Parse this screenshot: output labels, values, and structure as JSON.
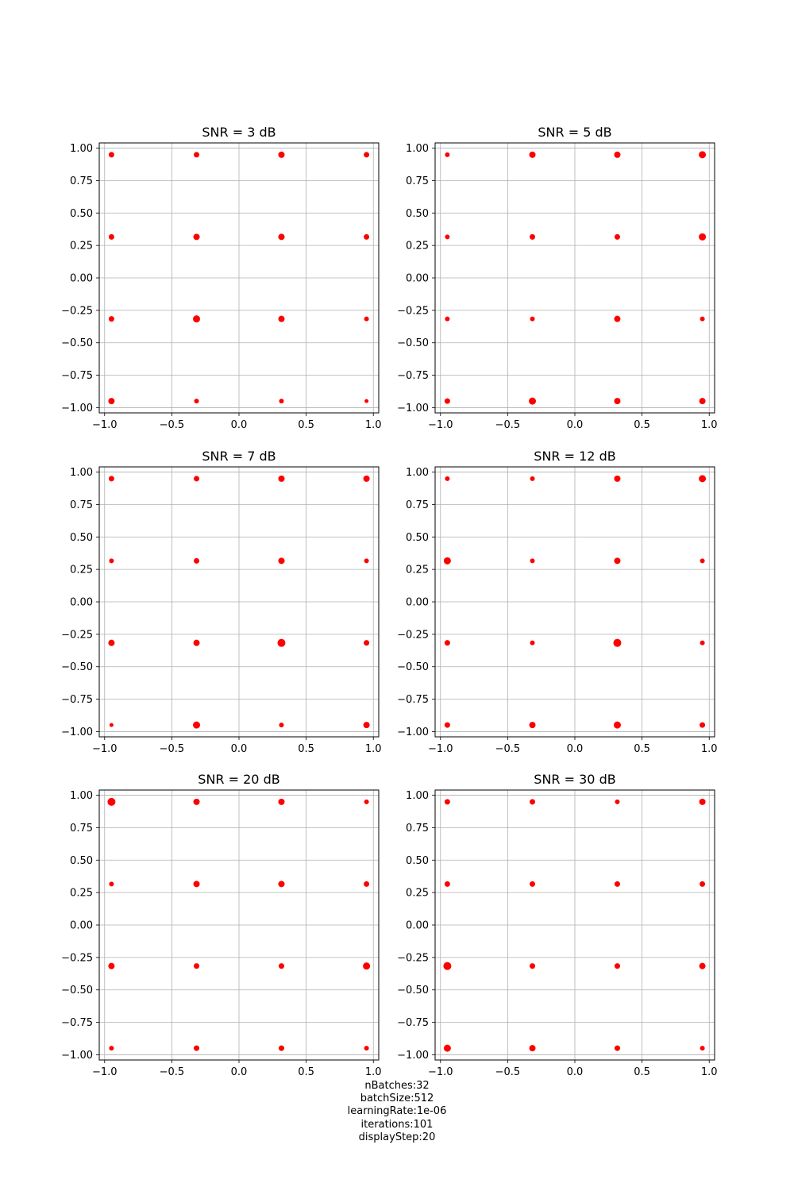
{
  "chart_data": [
    {
      "type": "scatter",
      "title": "SNR = 3 dB",
      "xlim": [
        -1.04,
        1.04
      ],
      "ylim": [
        -1.04,
        1.04
      ],
      "xticks": [
        "-1.0",
        "-0.5",
        "0.0",
        "0.5",
        "1.0"
      ],
      "yticks": [
        "-1.00",
        "-0.75",
        "-0.50",
        "-0.25",
        "0.00",
        "0.25",
        "0.50",
        "0.75",
        "1.00"
      ],
      "grid": true,
      "color": "#ff0000",
      "points": [
        {
          "x": -0.949,
          "y": 0.949,
          "s": 7
        },
        {
          "x": -0.316,
          "y": 0.949,
          "s": 7
        },
        {
          "x": 0.316,
          "y": 0.949,
          "s": 8
        },
        {
          "x": 0.949,
          "y": 0.949,
          "s": 7
        },
        {
          "x": -0.949,
          "y": 0.316,
          "s": 7
        },
        {
          "x": -0.316,
          "y": 0.316,
          "s": 8
        },
        {
          "x": 0.316,
          "y": 0.316,
          "s": 8
        },
        {
          "x": 0.949,
          "y": 0.316,
          "s": 7
        },
        {
          "x": -0.949,
          "y": -0.316,
          "s": 7
        },
        {
          "x": -0.316,
          "y": -0.316,
          "s": 9
        },
        {
          "x": 0.316,
          "y": -0.316,
          "s": 8
        },
        {
          "x": 0.949,
          "y": -0.316,
          "s": 6
        },
        {
          "x": -0.949,
          "y": -0.949,
          "s": 8
        },
        {
          "x": -0.316,
          "y": -0.949,
          "s": 6
        },
        {
          "x": 0.316,
          "y": -0.949,
          "s": 6
        },
        {
          "x": 0.949,
          "y": -0.949,
          "s": 5
        }
      ]
    },
    {
      "type": "scatter",
      "title": "SNR = 5 dB",
      "xlim": [
        -1.04,
        1.04
      ],
      "ylim": [
        -1.04,
        1.04
      ],
      "xticks": [
        "-1.0",
        "-0.5",
        "0.0",
        "0.5",
        "1.0"
      ],
      "yticks": [
        "-1.00",
        "-0.75",
        "-0.50",
        "-0.25",
        "0.00",
        "0.25",
        "0.50",
        "0.75",
        "1.00"
      ],
      "grid": true,
      "color": "#ff0000",
      "points": [
        {
          "x": -0.949,
          "y": 0.949,
          "s": 6
        },
        {
          "x": -0.316,
          "y": 0.949,
          "s": 8
        },
        {
          "x": 0.316,
          "y": 0.949,
          "s": 8
        },
        {
          "x": 0.949,
          "y": 0.949,
          "s": 9
        },
        {
          "x": -0.949,
          "y": 0.316,
          "s": 6
        },
        {
          "x": -0.316,
          "y": 0.316,
          "s": 7
        },
        {
          "x": 0.316,
          "y": 0.316,
          "s": 7
        },
        {
          "x": 0.949,
          "y": 0.316,
          "s": 9
        },
        {
          "x": -0.949,
          "y": -0.316,
          "s": 6
        },
        {
          "x": -0.316,
          "y": -0.316,
          "s": 6
        },
        {
          "x": 0.316,
          "y": -0.316,
          "s": 8
        },
        {
          "x": 0.949,
          "y": -0.316,
          "s": 6
        },
        {
          "x": -0.949,
          "y": -0.949,
          "s": 7
        },
        {
          "x": -0.316,
          "y": -0.949,
          "s": 9
        },
        {
          "x": 0.316,
          "y": -0.949,
          "s": 8
        },
        {
          "x": 0.949,
          "y": -0.949,
          "s": 8
        }
      ]
    },
    {
      "type": "scatter",
      "title": "SNR = 7 dB",
      "xlim": [
        -1.04,
        1.04
      ],
      "ylim": [
        -1.04,
        1.04
      ],
      "xticks": [
        "-1.0",
        "-0.5",
        "0.0",
        "0.5",
        "1.0"
      ],
      "yticks": [
        "-1.00",
        "-0.75",
        "-0.50",
        "-0.25",
        "0.00",
        "0.25",
        "0.50",
        "0.75",
        "1.00"
      ],
      "grid": true,
      "color": "#ff0000",
      "points": [
        {
          "x": -0.949,
          "y": 0.949,
          "s": 7
        },
        {
          "x": -0.316,
          "y": 0.949,
          "s": 7
        },
        {
          "x": 0.316,
          "y": 0.949,
          "s": 8
        },
        {
          "x": 0.949,
          "y": 0.949,
          "s": 8
        },
        {
          "x": -0.949,
          "y": 0.316,
          "s": 6
        },
        {
          "x": -0.316,
          "y": 0.316,
          "s": 7
        },
        {
          "x": 0.316,
          "y": 0.316,
          "s": 8
        },
        {
          "x": 0.949,
          "y": 0.316,
          "s": 6
        },
        {
          "x": -0.949,
          "y": -0.316,
          "s": 8
        },
        {
          "x": -0.316,
          "y": -0.316,
          "s": 8
        },
        {
          "x": 0.316,
          "y": -0.316,
          "s": 10
        },
        {
          "x": 0.949,
          "y": -0.316,
          "s": 7
        },
        {
          "x": -0.949,
          "y": -0.949,
          "s": 5
        },
        {
          "x": -0.316,
          "y": -0.949,
          "s": 9
        },
        {
          "x": 0.316,
          "y": -0.949,
          "s": 6
        },
        {
          "x": 0.949,
          "y": -0.949,
          "s": 8
        }
      ]
    },
    {
      "type": "scatter",
      "title": "SNR = 12 dB",
      "xlim": [
        -1.04,
        1.04
      ],
      "ylim": [
        -1.04,
        1.04
      ],
      "xticks": [
        "-1.0",
        "-0.5",
        "0.0",
        "0.5",
        "1.0"
      ],
      "yticks": [
        "-1.00",
        "-0.75",
        "-0.50",
        "-0.25",
        "0.00",
        "0.25",
        "0.50",
        "0.75",
        "1.00"
      ],
      "grid": true,
      "color": "#ff0000",
      "points": [
        {
          "x": -0.949,
          "y": 0.949,
          "s": 6
        },
        {
          "x": -0.316,
          "y": 0.949,
          "s": 6
        },
        {
          "x": 0.316,
          "y": 0.949,
          "s": 8
        },
        {
          "x": 0.949,
          "y": 0.949,
          "s": 9
        },
        {
          "x": -0.949,
          "y": 0.316,
          "s": 9
        },
        {
          "x": -0.316,
          "y": 0.316,
          "s": 6
        },
        {
          "x": 0.316,
          "y": 0.316,
          "s": 8
        },
        {
          "x": 0.949,
          "y": 0.316,
          "s": 6
        },
        {
          "x": -0.949,
          "y": -0.316,
          "s": 7
        },
        {
          "x": -0.316,
          "y": -0.316,
          "s": 6
        },
        {
          "x": 0.316,
          "y": -0.316,
          "s": 10
        },
        {
          "x": 0.949,
          "y": -0.316,
          "s": 6
        },
        {
          "x": -0.949,
          "y": -0.949,
          "s": 7
        },
        {
          "x": -0.316,
          "y": -0.949,
          "s": 8
        },
        {
          "x": 0.316,
          "y": -0.949,
          "s": 9
        },
        {
          "x": 0.949,
          "y": -0.949,
          "s": 7
        }
      ]
    },
    {
      "type": "scatter",
      "title": "SNR = 20 dB",
      "xlim": [
        -1.04,
        1.04
      ],
      "ylim": [
        -1.04,
        1.04
      ],
      "xticks": [
        "-1.0",
        "-0.5",
        "0.0",
        "0.5",
        "1.0"
      ],
      "yticks": [
        "-1.00",
        "-0.75",
        "-0.50",
        "-0.25",
        "0.00",
        "0.25",
        "0.50",
        "0.75",
        "1.00"
      ],
      "grid": true,
      "color": "#ff0000",
      "points": [
        {
          "x": -0.949,
          "y": 0.949,
          "s": 10
        },
        {
          "x": -0.316,
          "y": 0.949,
          "s": 8
        },
        {
          "x": 0.316,
          "y": 0.949,
          "s": 8
        },
        {
          "x": 0.949,
          "y": 0.949,
          "s": 6
        },
        {
          "x": -0.949,
          "y": 0.316,
          "s": 6
        },
        {
          "x": -0.316,
          "y": 0.316,
          "s": 8
        },
        {
          "x": 0.316,
          "y": 0.316,
          "s": 8
        },
        {
          "x": 0.949,
          "y": 0.316,
          "s": 7
        },
        {
          "x": -0.949,
          "y": -0.316,
          "s": 8
        },
        {
          "x": -0.316,
          "y": -0.316,
          "s": 7
        },
        {
          "x": 0.316,
          "y": -0.316,
          "s": 7
        },
        {
          "x": 0.949,
          "y": -0.316,
          "s": 9
        },
        {
          "x": -0.949,
          "y": -0.949,
          "s": 6
        },
        {
          "x": -0.316,
          "y": -0.949,
          "s": 7
        },
        {
          "x": 0.316,
          "y": -0.949,
          "s": 7
        },
        {
          "x": 0.949,
          "y": -0.949,
          "s": 6
        }
      ]
    },
    {
      "type": "scatter",
      "title": "SNR = 30 dB",
      "xlim": [
        -1.04,
        1.04
      ],
      "ylim": [
        -1.04,
        1.04
      ],
      "xticks": [
        "-1.0",
        "-0.5",
        "0.0",
        "0.5",
        "1.0"
      ],
      "yticks": [
        "-1.00",
        "-0.75",
        "-0.50",
        "-0.25",
        "0.00",
        "0.25",
        "0.50",
        "0.75",
        "1.00"
      ],
      "grid": true,
      "color": "#ff0000",
      "points": [
        {
          "x": -0.949,
          "y": 0.949,
          "s": 7
        },
        {
          "x": -0.316,
          "y": 0.949,
          "s": 7
        },
        {
          "x": 0.316,
          "y": 0.949,
          "s": 6
        },
        {
          "x": 0.949,
          "y": 0.949,
          "s": 8
        },
        {
          "x": -0.949,
          "y": 0.316,
          "s": 7
        },
        {
          "x": -0.316,
          "y": 0.316,
          "s": 7
        },
        {
          "x": 0.316,
          "y": 0.316,
          "s": 7
        },
        {
          "x": 0.949,
          "y": 0.316,
          "s": 7
        },
        {
          "x": -0.949,
          "y": -0.316,
          "s": 10
        },
        {
          "x": -0.316,
          "y": -0.316,
          "s": 7
        },
        {
          "x": 0.316,
          "y": -0.316,
          "s": 7
        },
        {
          "x": 0.949,
          "y": -0.316,
          "s": 8
        },
        {
          "x": -0.949,
          "y": -0.949,
          "s": 9
        },
        {
          "x": -0.316,
          "y": -0.949,
          "s": 8
        },
        {
          "x": 0.316,
          "y": -0.949,
          "s": 7
        },
        {
          "x": 0.949,
          "y": -0.949,
          "s": 6
        }
      ]
    }
  ],
  "caption": {
    "nbatches": "nBatches:32",
    "batch_size": "batchSize:512",
    "learning_rate": "learningRate:1e-06",
    "iterations": "iterations:101",
    "display_step": "displayStep:20"
  }
}
